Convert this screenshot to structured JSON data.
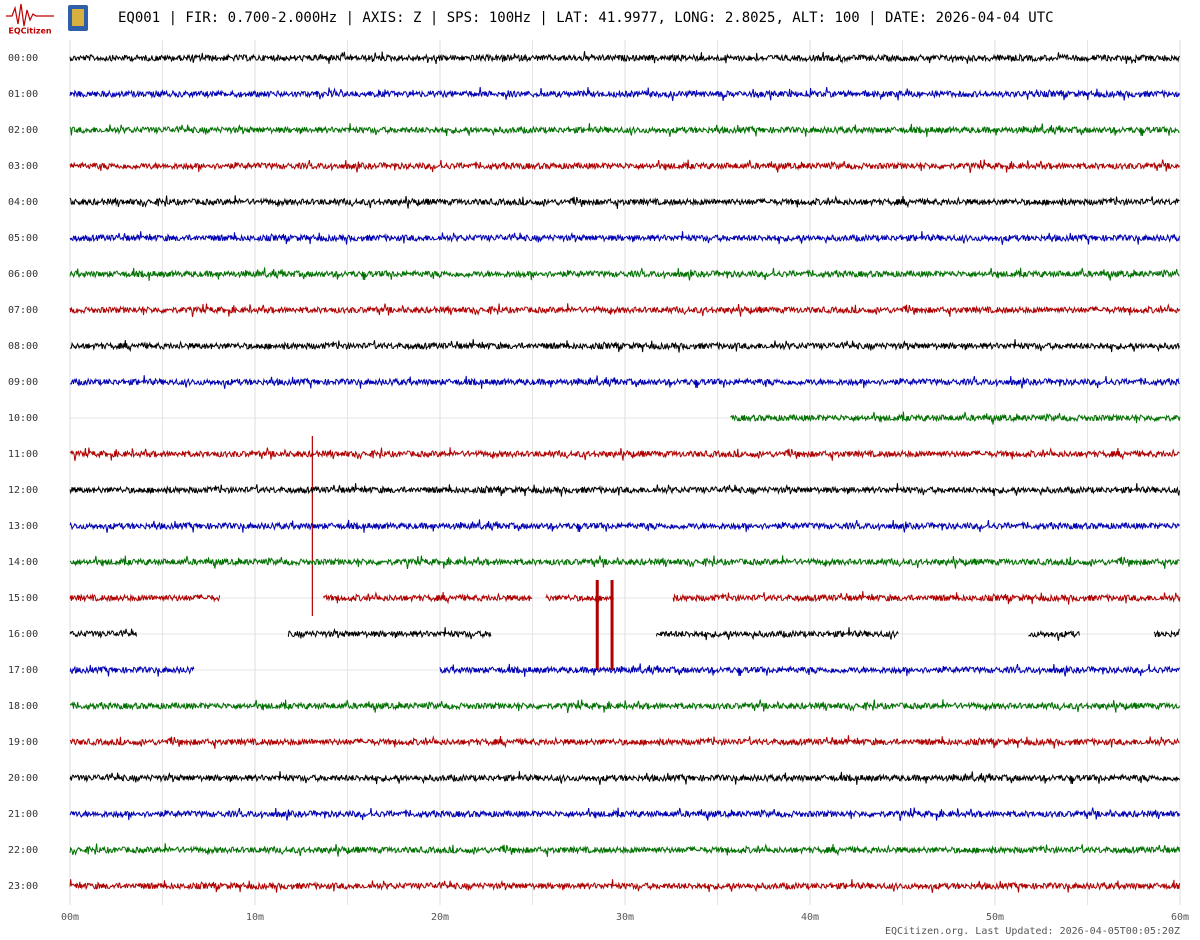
{
  "chart_data": {
    "type": "helicorder",
    "logo_text": "EQCitizen",
    "title": "EQ001 | FIR: 0.700-2.000Hz | AXIS: Z | SPS: 100Hz | LAT: 41.9977, LONG: 2.8025, ALT: 100 | DATE: 2026-04-04 UTC",
    "footer": "EQCitizen.org. Last Updated: 2026-04-05T00:05:20Z",
    "xlim": [
      0,
      60
    ],
    "xticks": [
      {
        "value": 0,
        "label": "00m"
      },
      {
        "value": 10,
        "label": "10m"
      },
      {
        "value": 20,
        "label": "20m"
      },
      {
        "value": 30,
        "label": "30m"
      },
      {
        "value": 40,
        "label": "40m"
      },
      {
        "value": 50,
        "label": "50m"
      },
      {
        "value": 60,
        "label": "60m"
      }
    ],
    "grid": true,
    "rows": [
      {
        "label": "00:00",
        "color": "#000000",
        "segments": [
          [
            0,
            60
          ]
        ],
        "spikes": []
      },
      {
        "label": "01:00",
        "color": "#0000b4",
        "segments": [
          [
            0,
            60
          ]
        ],
        "spikes": []
      },
      {
        "label": "02:00",
        "color": "#007000",
        "segments": [
          [
            0,
            60
          ]
        ],
        "spikes": []
      },
      {
        "label": "03:00",
        "color": "#b00000",
        "segments": [
          [
            0,
            60
          ]
        ],
        "spikes": []
      },
      {
        "label": "04:00",
        "color": "#000000",
        "segments": [
          [
            0,
            60
          ]
        ],
        "spikes": []
      },
      {
        "label": "05:00",
        "color": "#0000b4",
        "segments": [
          [
            0,
            60
          ]
        ],
        "spikes": []
      },
      {
        "label": "06:00",
        "color": "#007000",
        "segments": [
          [
            0,
            60
          ]
        ],
        "spikes": []
      },
      {
        "label": "07:00",
        "color": "#b00000",
        "segments": [
          [
            0,
            60
          ]
        ],
        "spikes": []
      },
      {
        "label": "08:00",
        "color": "#000000",
        "segments": [
          [
            0,
            60
          ]
        ],
        "spikes": []
      },
      {
        "label": "09:00",
        "color": "#0000b4",
        "segments": [
          [
            0,
            60
          ]
        ],
        "spikes": []
      },
      {
        "label": "10:00",
        "color": "#007000",
        "segments": [
          [
            35.7,
            60
          ]
        ],
        "spikes": []
      },
      {
        "label": "11:00",
        "color": "#b00000",
        "segments": [
          [
            0,
            60
          ]
        ],
        "spikes": [
          13.1
        ]
      },
      {
        "label": "12:00",
        "color": "#000000",
        "segments": [
          [
            0,
            60
          ]
        ],
        "spikes": []
      },
      {
        "label": "13:00",
        "color": "#0000b4",
        "segments": [
          [
            0,
            60
          ]
        ],
        "spikes": []
      },
      {
        "label": "14:00",
        "color": "#007000",
        "segments": [
          [
            0,
            60
          ]
        ],
        "spikes": []
      },
      {
        "label": "15:00",
        "color": "#b00000",
        "segments": [
          [
            0,
            8.1
          ],
          [
            13.7,
            25.0
          ],
          [
            25.7,
            29.4
          ],
          [
            32.6,
            60
          ]
        ],
        "spikes": [
          28.5,
          29.3
        ]
      },
      {
        "label": "16:00",
        "color": "#000000",
        "segments": [
          [
            0,
            3.6
          ],
          [
            11.8,
            22.8
          ],
          [
            31.7,
            44.8
          ],
          [
            51.8,
            54.6
          ],
          [
            58.6,
            60
          ]
        ],
        "spikes": []
      },
      {
        "label": "17:00",
        "color": "#0000b4",
        "segments": [
          [
            0,
            6.7
          ],
          [
            20.0,
            60
          ]
        ],
        "spikes": []
      },
      {
        "label": "18:00",
        "color": "#007000",
        "segments": [
          [
            0,
            60
          ]
        ],
        "spikes": []
      },
      {
        "label": "19:00",
        "color": "#b00000",
        "segments": [
          [
            0,
            60
          ]
        ],
        "spikes": []
      },
      {
        "label": "20:00",
        "color": "#000000",
        "segments": [
          [
            0,
            60
          ]
        ],
        "spikes": []
      },
      {
        "label": "21:00",
        "color": "#0000b4",
        "segments": [
          [
            0,
            60
          ]
        ],
        "spikes": []
      },
      {
        "label": "22:00",
        "color": "#007000",
        "segments": [
          [
            0,
            60
          ]
        ],
        "spikes": []
      },
      {
        "label": "23:00",
        "color": "#b00000",
        "segments": [
          [
            0,
            60
          ]
        ],
        "spikes": []
      }
    ]
  }
}
